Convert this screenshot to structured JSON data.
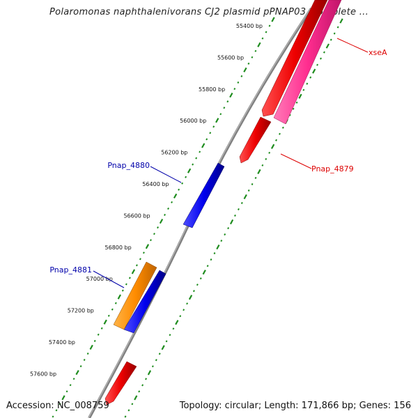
{
  "title": "Polaromonas naphthalenivorans CJ2 plasmid pPNAP03, complete ...",
  "footer": {
    "accession": "Accession: NC_008759",
    "summary": "Topology: circular; Length: 171,866 bp; Genes: 156"
  },
  "scale": {
    "ticks": [
      "55400 bp",
      "55600 bp",
      "55800 bp",
      "56000 bp",
      "56200 bp",
      "56400 bp",
      "56600 bp",
      "56800 bp",
      "57000 bp",
      "57200 bp",
      "57400 bp",
      "57600 bp"
    ]
  },
  "gene_labels": {
    "xseA": "xseA",
    "Pnap_4879": "Pnap_4879",
    "Pnap_4880": "Pnap_4880",
    "Pnap_4881": "Pnap_4881"
  },
  "colors": {
    "backbone": "#808080",
    "forward_tick": "#1e8c1e",
    "forward_gene_red": "#ee0000",
    "forward_gene_pink": "#ff2d8f",
    "reverse_gene_blue": "#0000ee",
    "reverse_gene_orange": "#ff8c00",
    "label_red": "#dd0000",
    "label_blue": "#0000aa"
  }
}
